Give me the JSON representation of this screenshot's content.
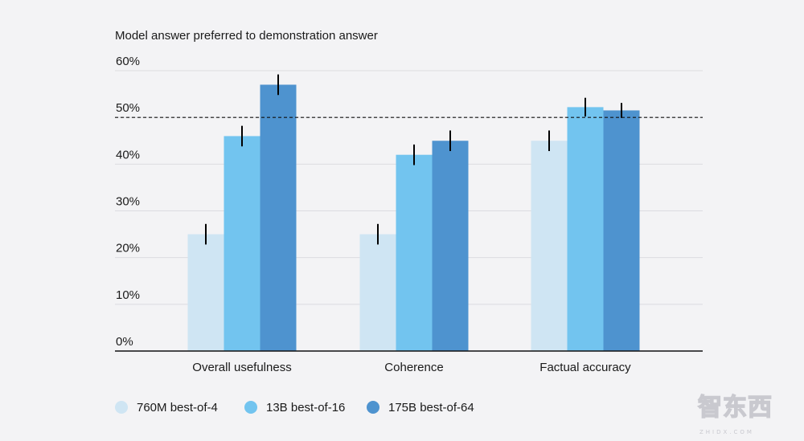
{
  "chart_data": {
    "type": "bar",
    "title": "Model answer preferred to demonstration answer",
    "categories": [
      "Overall usefulness",
      "Coherence",
      "Factual accuracy"
    ],
    "series": [
      {
        "name": "760M best-of-4",
        "color": "#cfe5f3",
        "values": [
          25,
          25,
          45
        ],
        "error": [
          2.2,
          2.2,
          2.2
        ]
      },
      {
        "name": "13B best-of-16",
        "color": "#72c4ef",
        "values": [
          46,
          42,
          52.2
        ],
        "error": [
          2.2,
          2.2,
          2.0
        ]
      },
      {
        "name": "175B best-of-64",
        "color": "#4e93cf",
        "values": [
          57,
          45,
          51.5
        ],
        "error": [
          2.2,
          2.2,
          1.6
        ]
      }
    ],
    "y_ticks": [
      "0%",
      "10%",
      "20%",
      "30%",
      "40%",
      "50%",
      "60%"
    ],
    "y_tick_values": [
      0,
      10,
      20,
      30,
      40,
      50,
      60
    ],
    "ylim": [
      0,
      60
    ],
    "reference_line": 50,
    "xlabel": "",
    "ylabel": "",
    "grid": true,
    "legend_position": "bottom-left"
  },
  "watermark": {
    "text": "智东西",
    "sub": "ZHIDX.COM"
  }
}
